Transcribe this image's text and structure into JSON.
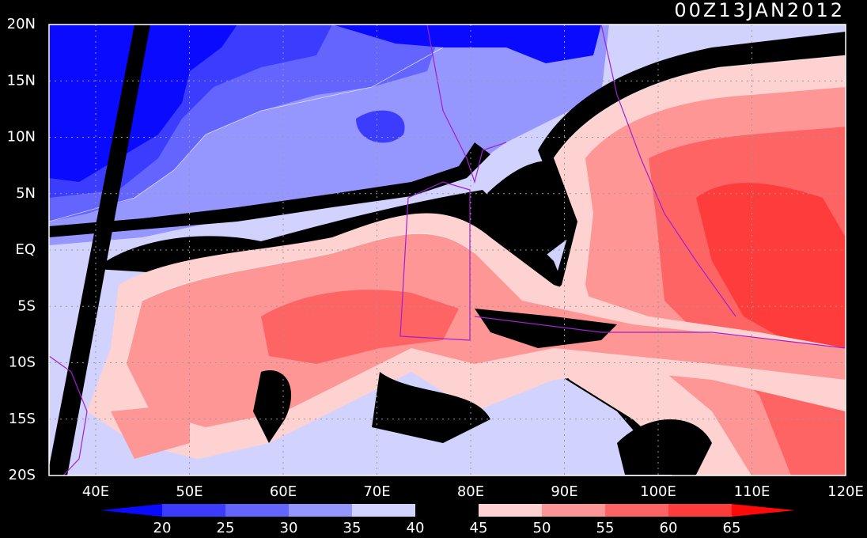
{
  "title": "00Z13JAN2012",
  "map": {
    "lat_labels": [
      "20N",
      "15N",
      "10N",
      "5N",
      "EQ",
      "5S",
      "10S",
      "15S",
      "20S"
    ],
    "lon_labels": [
      "40E",
      "50E",
      "60E",
      "70E",
      "80E",
      "90E",
      "100E",
      "110E",
      "120E"
    ]
  },
  "colorbar": {
    "labels": [
      "20",
      "25",
      "30",
      "35",
      "40",
      "45",
      "50",
      "55",
      "60",
      "65"
    ],
    "colors": [
      "#0a0aff",
      "#3c3cff",
      "#6464ff",
      "#9696ff",
      "#d2d2ff",
      "#000000",
      "#ffd2d2",
      "#ff9696",
      "#ff6464",
      "#ff3c3c",
      "#ff0a0a"
    ]
  }
}
